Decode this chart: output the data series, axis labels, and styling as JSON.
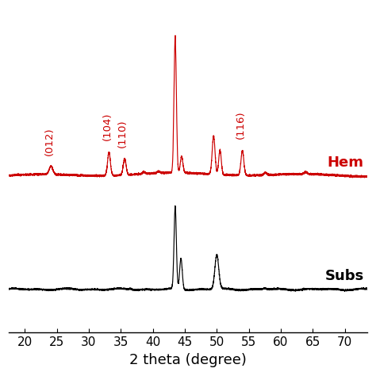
{
  "title": "",
  "xlabel": "2 theta (degree)",
  "ylabel": "",
  "xlim": [
    17.5,
    73.5
  ],
  "hematite_color": "#cc0000",
  "substrate_color": "#000000",
  "hematite_label": "Hem",
  "substrate_label": "Subs",
  "hematite_baseline": 0.52,
  "substrate_baseline": 0.18,
  "xticks": [
    20,
    25,
    30,
    35,
    40,
    45,
    50,
    55,
    60,
    65,
    70
  ],
  "background_color": "#ffffff",
  "label_fontsize": 13,
  "tick_fontsize": 11,
  "annotation_fontsize": 9.5,
  "peak_labels": [
    {
      "label": "(012)",
      "x": 24.1
    },
    {
      "label": "(104)",
      "x": 33.1
    },
    {
      "label": "(110)",
      "x": 35.6
    },
    {
      "label": "(116)",
      "x": 54.0
    }
  ]
}
